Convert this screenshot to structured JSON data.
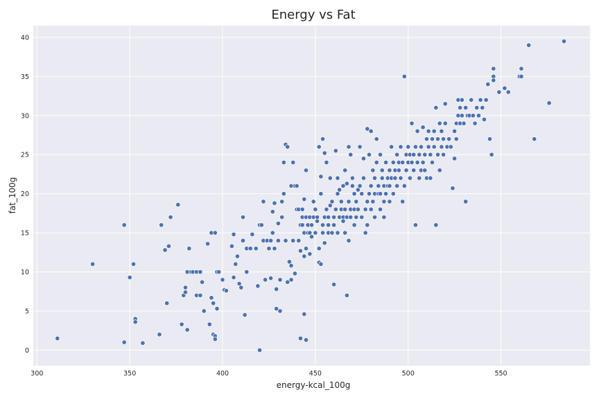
{
  "chart_data": {
    "type": "scatter",
    "title": "Energy vs Fat",
    "xlabel": "energy-kcal_100g",
    "ylabel": "fat_100g",
    "xlim": [
      298,
      598
    ],
    "ylim": [
      -2,
      41.5
    ],
    "xticks": [
      300,
      350,
      400,
      450,
      500,
      550
    ],
    "yticks": [
      0,
      5,
      10,
      15,
      20,
      25,
      30,
      35,
      40
    ],
    "grid": true,
    "background": "#eaeaf2",
    "point_color": "#4c72b0",
    "series": [
      {
        "points": [
          [
            311,
            1.5
          ],
          [
            330,
            11
          ],
          [
            347,
            16
          ],
          [
            347,
            1
          ],
          [
            350,
            9.3
          ],
          [
            352,
            11
          ],
          [
            353,
            4
          ],
          [
            353,
            3.6
          ],
          [
            357,
            0.9
          ],
          [
            366,
            2
          ],
          [
            367,
            16
          ],
          [
            369,
            12.8
          ],
          [
            370,
            6
          ],
          [
            371,
            13.3
          ],
          [
            372,
            17
          ],
          [
            376,
            18.6
          ],
          [
            378,
            3.3
          ],
          [
            379,
            7
          ],
          [
            380,
            7.4
          ],
          [
            380,
            8
          ],
          [
            381,
            2.6
          ],
          [
            381,
            10
          ],
          [
            382,
            13
          ],
          [
            383,
            10
          ],
          [
            384,
            10
          ],
          [
            386,
            7
          ],
          [
            386,
            10
          ],
          [
            388,
            10
          ],
          [
            388,
            7
          ],
          [
            389,
            8.7
          ],
          [
            390,
            5
          ],
          [
            392,
            13.6
          ],
          [
            393,
            3.3
          ],
          [
            394,
            15
          ],
          [
            394,
            6.7
          ],
          [
            395,
            6
          ],
          [
            395,
            2
          ],
          [
            396,
            1.8
          ],
          [
            396,
            15
          ],
          [
            396,
            1.4
          ],
          [
            397,
            10
          ],
          [
            397,
            5.3
          ],
          [
            398,
            10
          ],
          [
            400,
            9
          ],
          [
            401,
            7.7
          ],
          [
            402,
            7.6
          ],
          [
            405,
            13.3
          ],
          [
            406,
            9.3
          ],
          [
            406,
            14.8
          ],
          [
            407,
            11
          ],
          [
            408,
            12
          ],
          [
            409,
            8.5
          ],
          [
            410,
            8
          ],
          [
            411,
            17
          ],
          [
            411,
            14
          ],
          [
            412,
            4.5
          ],
          [
            413,
            10
          ],
          [
            413,
            13
          ],
          [
            415,
            13
          ],
          [
            416,
            14.8
          ],
          [
            418,
            13
          ],
          [
            419,
            8.2
          ],
          [
            420,
            0
          ],
          [
            420,
            16
          ],
          [
            421,
            16
          ],
          [
            422,
            14
          ],
          [
            422,
            19
          ],
          [
            423,
            9
          ],
          [
            424,
            14
          ],
          [
            425,
            13
          ],
          [
            426,
            9.2
          ],
          [
            426,
            14
          ],
          [
            427,
            15
          ],
          [
            427,
            17.7
          ],
          [
            428,
            18.8
          ],
          [
            428,
            13
          ],
          [
            429,
            5.3
          ],
          [
            429,
            7.8
          ],
          [
            430,
            14
          ],
          [
            430,
            16.2
          ],
          [
            431,
            9
          ],
          [
            431,
            5
          ],
          [
            432,
            19
          ],
          [
            432,
            17
          ],
          [
            433,
            20
          ],
          [
            433,
            24
          ],
          [
            434,
            26.3
          ],
          [
            434,
            14
          ],
          [
            435,
            8.7
          ],
          [
            435,
            26
          ],
          [
            436,
            11.3
          ],
          [
            437,
            10.8
          ],
          [
            437,
            21
          ],
          [
            437,
            9
          ],
          [
            438,
            14
          ],
          [
            438,
            24
          ],
          [
            439,
            21
          ],
          [
            439,
            9.8
          ],
          [
            440,
            21
          ],
          [
            440,
            18
          ],
          [
            441,
            18
          ],
          [
            441,
            14
          ],
          [
            442,
            1.5
          ],
          [
            442,
            12.7
          ],
          [
            442,
            16
          ],
          [
            443,
            17
          ],
          [
            443,
            16
          ],
          [
            443,
            18
          ],
          [
            444,
            15
          ],
          [
            444,
            12
          ],
          [
            444,
            4.6
          ],
          [
            444,
            19.3
          ],
          [
            445,
            1.3
          ],
          [
            445,
            17
          ],
          [
            445,
            23
          ],
          [
            445,
            13
          ],
          [
            446,
            15
          ],
          [
            446,
            16
          ],
          [
            447,
            17
          ],
          [
            447,
            12.3
          ],
          [
            447,
            15
          ],
          [
            448,
            14.5
          ],
          [
            448,
            16
          ],
          [
            449,
            17
          ],
          [
            449,
            19
          ],
          [
            450,
            15
          ],
          [
            450,
            18
          ],
          [
            451,
            16.5
          ],
          [
            451,
            17
          ],
          [
            452,
            13
          ],
          [
            452,
            26
          ],
          [
            452,
            11.2
          ],
          [
            453,
            22.2
          ],
          [
            453,
            20
          ],
          [
            453,
            11
          ],
          [
            454,
            27
          ],
          [
            454,
            15
          ],
          [
            454,
            16
          ],
          [
            455,
            17
          ],
          [
            455,
            25.2
          ],
          [
            455,
            13.7
          ],
          [
            456,
            24
          ],
          [
            456,
            18
          ],
          [
            457,
            15
          ],
          [
            457,
            17
          ],
          [
            457,
            16
          ],
          [
            458,
            22
          ],
          [
            458,
            18.5
          ],
          [
            459,
            15
          ],
          [
            459,
            19
          ],
          [
            460,
            17
          ],
          [
            460,
            8.4
          ],
          [
            460,
            16
          ],
          [
            461,
            25.5
          ],
          [
            461,
            18
          ],
          [
            462,
            20
          ],
          [
            462,
            22
          ],
          [
            462,
            15
          ],
          [
            463,
            17
          ],
          [
            463,
            20.5
          ],
          [
            464,
            19
          ],
          [
            464,
            18
          ],
          [
            465,
            17
          ],
          [
            465,
            16.5
          ],
          [
            465,
            21
          ],
          [
            466,
            23
          ],
          [
            466,
            18
          ],
          [
            466,
            15
          ],
          [
            467,
            17
          ],
          [
            467,
            7
          ],
          [
            467,
            21.3
          ],
          [
            468,
            14
          ],
          [
            468,
            19
          ],
          [
            468,
            26
          ],
          [
            469,
            18
          ],
          [
            469,
            25
          ],
          [
            469,
            17
          ],
          [
            470,
            21
          ],
          [
            470,
            22
          ],
          [
            471,
            18
          ],
          [
            471,
            20
          ],
          [
            471,
            16
          ],
          [
            472,
            17
          ],
          [
            472,
            19
          ],
          [
            473,
            20.5
          ],
          [
            473,
            18
          ],
          [
            474,
            26
          ],
          [
            474,
            21
          ],
          [
            475,
            20
          ],
          [
            475,
            17
          ],
          [
            476,
            22
          ],
          [
            476,
            24.5
          ],
          [
            477,
            18
          ],
          [
            477,
            15
          ],
          [
            478,
            28.3
          ],
          [
            478,
            19
          ],
          [
            478,
            16
          ],
          [
            479,
            20
          ],
          [
            479,
            25
          ],
          [
            480,
            21
          ],
          [
            480,
            18
          ],
          [
            480,
            28
          ],
          [
            481,
            19
          ],
          [
            481,
            23
          ],
          [
            482,
            20
          ],
          [
            482,
            22
          ],
          [
            482,
            17
          ],
          [
            483,
            27
          ],
          [
            483,
            24
          ],
          [
            484,
            20
          ],
          [
            484,
            21
          ],
          [
            485,
            25
          ],
          [
            485,
            20
          ],
          [
            485,
            18
          ],
          [
            486,
            23
          ],
          [
            486,
            22
          ],
          [
            487,
            19
          ],
          [
            487,
            21
          ],
          [
            487,
            17
          ],
          [
            488,
            24
          ],
          [
            488,
            20
          ],
          [
            489,
            22
          ],
          [
            489,
            21
          ],
          [
            490,
            19
          ],
          [
            490,
            23
          ],
          [
            490,
            21
          ],
          [
            491,
            22
          ],
          [
            491,
            26
          ],
          [
            492,
            20
          ],
          [
            492,
            24
          ],
          [
            493,
            23
          ],
          [
            493,
            22
          ],
          [
            494,
            25
          ],
          [
            494,
            21
          ],
          [
            495,
            24
          ],
          [
            495,
            23
          ],
          [
            496,
            22
          ],
          [
            496,
            26
          ],
          [
            497,
            24
          ],
          [
            497,
            19
          ],
          [
            498,
            21
          ],
          [
            498,
            35
          ],
          [
            499,
            25
          ],
          [
            499,
            23
          ],
          [
            500,
            24
          ],
          [
            500,
            26
          ],
          [
            501,
            25
          ],
          [
            501,
            22
          ],
          [
            502,
            29
          ],
          [
            502,
            24
          ],
          [
            503,
            23
          ],
          [
            503,
            25
          ],
          [
            504,
            26
          ],
          [
            504,
            16
          ],
          [
            505,
            24
          ],
          [
            505,
            28
          ],
          [
            506,
            25
          ],
          [
            506,
            22
          ],
          [
            507,
            26
          ],
          [
            507,
            23
          ],
          [
            508,
            28.5
          ],
          [
            508,
            24
          ],
          [
            509,
            25
          ],
          [
            509,
            23
          ],
          [
            510,
            27
          ],
          [
            510,
            22
          ],
          [
            511,
            28
          ],
          [
            511,
            26
          ],
          [
            512,
            25
          ],
          [
            512,
            22
          ],
          [
            513,
            27
          ],
          [
            513,
            24
          ],
          [
            514,
            28
          ],
          [
            514,
            26
          ],
          [
            515,
            31
          ],
          [
            515,
            16
          ],
          [
            516,
            27
          ],
          [
            516,
            25
          ],
          [
            517,
            29
          ],
          [
            517,
            23
          ],
          [
            518,
            28
          ],
          [
            518,
            26
          ],
          [
            519,
            25
          ],
          [
            519,
            27
          ],
          [
            520,
            31.5
          ],
          [
            520,
            29
          ],
          [
            521,
            26
          ],
          [
            522,
            27
          ],
          [
            523,
            26
          ],
          [
            524,
            20.7
          ],
          [
            525,
            28
          ],
          [
            525,
            24.5
          ],
          [
            526,
            29
          ],
          [
            526,
            27
          ],
          [
            527,
            30
          ],
          [
            527,
            32
          ],
          [
            528,
            29
          ],
          [
            528,
            31
          ],
          [
            529,
            30
          ],
          [
            529,
            32
          ],
          [
            530,
            29
          ],
          [
            531,
            19
          ],
          [
            531,
            31
          ],
          [
            532,
            30
          ],
          [
            533,
            30
          ],
          [
            534,
            32
          ],
          [
            535,
            30
          ],
          [
            536,
            29
          ],
          [
            537,
            31
          ],
          [
            538,
            30
          ],
          [
            539,
            32
          ],
          [
            540,
            31
          ],
          [
            541,
            29.5
          ],
          [
            542,
            32
          ],
          [
            543,
            34
          ],
          [
            544,
            27
          ],
          [
            545,
            25
          ],
          [
            546,
            35
          ],
          [
            546,
            36
          ],
          [
            546,
            34.5
          ],
          [
            549,
            33
          ],
          [
            552,
            33.5
          ],
          [
            554,
            33
          ],
          [
            560,
            35
          ],
          [
            561,
            36
          ],
          [
            561,
            35
          ],
          [
            565,
            39
          ],
          [
            576,
            31.6
          ],
          [
            568,
            27
          ],
          [
            584,
            39.5
          ]
        ]
      }
    ]
  }
}
